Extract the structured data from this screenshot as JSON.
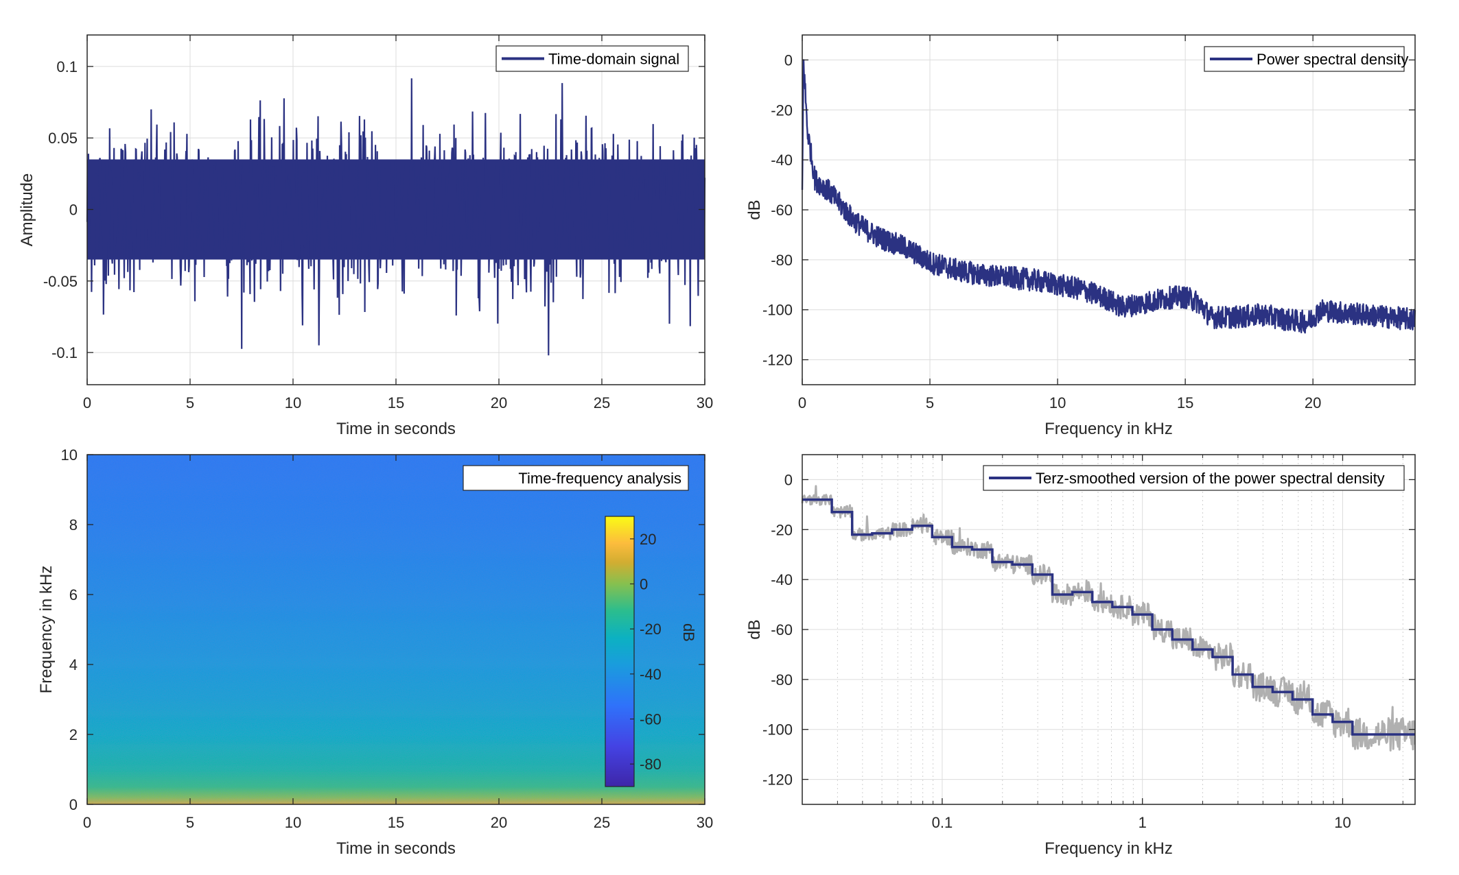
{
  "colors": {
    "series": "#2b3282",
    "raw_psd": "#b0b0b0",
    "grid": "#dcdcdc",
    "axis": "#262626"
  },
  "chart_data": [
    {
      "id": "time",
      "type": "line",
      "title": "",
      "xlabel": "Time in seconds",
      "ylabel": "Amplitude",
      "xlim": [
        0,
        30
      ],
      "ylim": [
        -0.1225,
        0.122
      ],
      "xticks": [
        0,
        5,
        10,
        15,
        20,
        25,
        30
      ],
      "xtick_labels": [
        "0",
        "5",
        "10",
        "15",
        "20",
        "25",
        "30"
      ],
      "yticks": [
        0.1,
        0.05,
        0,
        -0.05,
        -0.1
      ],
      "ytick_labels": [
        "0.1",
        "0.05",
        "0",
        "-0.05",
        "-0.1"
      ],
      "grid": true,
      "legend": {
        "position": "top-right",
        "entries": [
          "Time-domain signal"
        ]
      },
      "series": [
        {
          "name": "Time-domain signal",
          "description_stats": {
            "envelope_max": 0.095,
            "envelope_min": -0.102,
            "dense_band": 0.035
          }
        }
      ]
    },
    {
      "id": "psd",
      "type": "line",
      "xlabel": "Frequency in kHz",
      "ylabel": "dB",
      "xlim": [
        0,
        24
      ],
      "ylim": [
        -130,
        10
      ],
      "xticks": [
        0,
        5,
        10,
        15,
        20
      ],
      "xtick_labels": [
        "0",
        "5",
        "10",
        "15",
        "20"
      ],
      "yticks": [
        0,
        -20,
        -40,
        -60,
        -80,
        -100,
        -120
      ],
      "ytick_labels": [
        "0",
        "-20",
        "-40",
        "-60",
        "-80",
        "-100",
        "-120"
      ],
      "grid": true,
      "legend": {
        "position": "top-right",
        "entries": [
          "Power spectral density"
        ]
      },
      "series": [
        {
          "name": "Power spectral density",
          "x": [
            0,
            0.05,
            0.2,
            0.5,
            1,
            1.5,
            2,
            2.5,
            3,
            3.5,
            4,
            4.5,
            5,
            6,
            7,
            8,
            9,
            10,
            11,
            12,
            12.5,
            13,
            14,
            14.5,
            15,
            15.5,
            16,
            17,
            18,
            19,
            19.8,
            20.3,
            21,
            22,
            23,
            24
          ],
          "y": [
            -52,
            0,
            -28,
            -48,
            -52,
            -58,
            -64,
            -68,
            -71,
            -73,
            -75,
            -78,
            -81,
            -84,
            -86,
            -87,
            -88,
            -90,
            -92,
            -96,
            -99,
            -98,
            -96,
            -95,
            -95,
            -97,
            -103,
            -103,
            -102,
            -104,
            -105,
            -100,
            -101,
            -102,
            -103,
            -104
          ]
        }
      ]
    },
    {
      "id": "spectrogram",
      "type": "heatmap",
      "xlabel": "Time in seconds",
      "ylabel": "Frequency in kHz",
      "xlim": [
        0,
        30
      ],
      "ylim": [
        0,
        10
      ],
      "xticks": [
        0,
        5,
        10,
        15,
        20,
        25,
        30
      ],
      "xtick_labels": [
        "0",
        "5",
        "10",
        "15",
        "20",
        "25",
        "30"
      ],
      "yticks": [
        0,
        2,
        4,
        6,
        8,
        10
      ],
      "ytick_labels": [
        "0",
        "2",
        "4",
        "6",
        "8",
        "10"
      ],
      "legend": {
        "position": "top-right",
        "entries": [
          "Time-frequency analysis"
        ]
      },
      "colorbar": {
        "label": "dB",
        "clim": [
          -90,
          30
        ],
        "ticks": [
          20,
          0,
          -20,
          -40,
          -60,
          -80
        ],
        "tick_labels": [
          "20",
          "0",
          "-20",
          "-40",
          "-60",
          "-80"
        ],
        "colormap": "parula"
      },
      "level_profile_khz": [
        0,
        0.2,
        0.5,
        1,
        2,
        3,
        4,
        6,
        8,
        10
      ],
      "level_profile_db": [
        10,
        0,
        -10,
        -18,
        -26,
        -32,
        -36,
        -42,
        -47,
        -50
      ]
    },
    {
      "id": "terz",
      "type": "line",
      "xscale": "log",
      "xlabel": "Frequency in kHz",
      "ylabel": "dB",
      "xlim": [
        0.02,
        23
      ],
      "ylim": [
        -130,
        10
      ],
      "xticks": [
        0.1,
        1,
        10
      ],
      "xtick_labels": [
        "0.1",
        "1",
        "10"
      ],
      "yticks": [
        0,
        -20,
        -40,
        -60,
        -80,
        -100,
        -120
      ],
      "ytick_labels": [
        "0",
        "-20",
        "-40",
        "-60",
        "-80",
        "-100",
        "-120"
      ],
      "grid": true,
      "legend": {
        "position": "top-right",
        "entries": [
          "Terz-smoothed version of the power spectral density"
        ]
      },
      "series": [
        {
          "name": "Terz-smoothed version of the power spectral density",
          "band_edges_khz": [
            0.02,
            0.0281,
            0.0355,
            0.0447,
            0.0562,
            0.0708,
            0.0891,
            0.112,
            0.141,
            0.178,
            0.224,
            0.282,
            0.355,
            0.447,
            0.562,
            0.708,
            0.891,
            1.12,
            1.41,
            1.78,
            2.24,
            2.82,
            3.55,
            4.47,
            5.62,
            7.08,
            8.91,
            11.2,
            14.1,
            17.8,
            23
          ],
          "levels_db": [
            -8,
            -13,
            -22,
            -21.5,
            -20,
            -18.5,
            -23,
            -27,
            -28,
            -33,
            -34,
            -38,
            -46,
            -45,
            -49,
            -51,
            -54,
            -60,
            -64,
            -68,
            -71,
            -78,
            -83,
            -85,
            -88,
            -94,
            -97,
            -102,
            -102,
            -102
          ]
        },
        {
          "name": "raw PSD (grey)"
        }
      ]
    }
  ]
}
